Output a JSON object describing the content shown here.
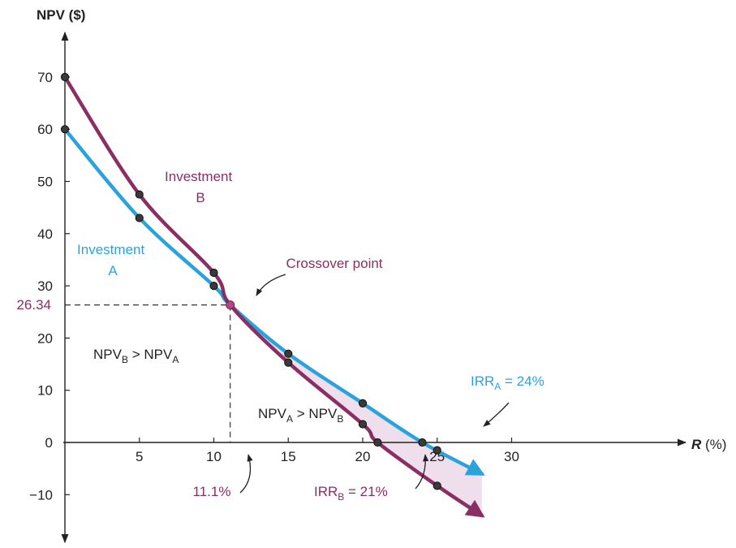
{
  "chart_data": {
    "type": "line",
    "xlabel_main": "R",
    "xlabel_unit": " (%)",
    "ylabel": "NPV ($)",
    "xlim": [
      0,
      32
    ],
    "ylim": [
      -15,
      78
    ],
    "x_ticks": [
      5,
      10,
      15,
      20,
      25,
      30
    ],
    "y_ticks": [
      -10,
      0,
      10,
      20,
      30,
      40,
      50,
      60,
      70
    ],
    "grid": false,
    "series": [
      {
        "name": "Investment A",
        "label_line1": "Investment",
        "label_line2": "A",
        "color": "#2aa3dc",
        "x": [
          0,
          5,
          10,
          11.1,
          15,
          20,
          24,
          28
        ],
        "y": [
          60,
          43,
          30,
          26.34,
          17,
          7.5,
          0,
          -6
        ],
        "markers": [
          [
            0,
            60
          ],
          [
            5,
            43
          ],
          [
            10,
            30
          ],
          [
            15,
            17
          ],
          [
            20,
            7.5
          ],
          [
            24,
            0
          ],
          [
            25,
            -1.5
          ]
        ]
      },
      {
        "name": "Investment B",
        "label_line1": "Investment",
        "label_line2": "B",
        "color": "#8a2e64",
        "x": [
          0,
          5,
          10,
          11.1,
          15,
          20,
          21,
          25,
          28
        ],
        "y": [
          70,
          47.5,
          32.5,
          26.34,
          15.3,
          3.5,
          0,
          -8.3,
          -14
        ],
        "markers": [
          [
            0,
            70
          ],
          [
            5,
            47.5
          ],
          [
            10,
            32.5
          ],
          [
            15,
            15.3
          ],
          [
            20,
            3.5
          ],
          [
            21,
            0
          ],
          [
            25,
            -8.3
          ]
        ]
      }
    ],
    "crossover": {
      "x": 11.1,
      "y": 26.34,
      "label": "Crossover point",
      "x_label": "11.1%",
      "y_label": "26.34"
    },
    "region_labels": {
      "b_over_a": {
        "left": "NPV",
        "left_sub": "B",
        "op": " > ",
        "right": "NPV",
        "right_sub": "A"
      },
      "a_over_b": {
        "left": "NPV",
        "left_sub": "A",
        "op": " > ",
        "right": "NPV",
        "right_sub": "B"
      }
    },
    "irr_labels": {
      "a": {
        "main": "IRR",
        "sub": "A",
        "rest": " = 24%",
        "x": 24
      },
      "b": {
        "main": "IRR",
        "sub": "B",
        "rest": " = 21%",
        "x": 21
      }
    },
    "colors": {
      "a": "#2aa3dc",
      "b": "#8a2e64",
      "crossover": "#b04a86",
      "shade": "#e9d3e6"
    }
  }
}
